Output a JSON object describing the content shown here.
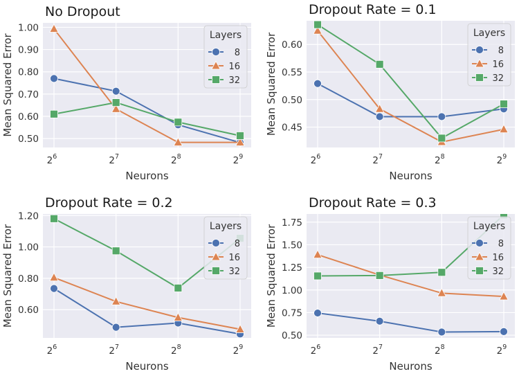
{
  "colors": {
    "8": "#4c72b0",
    "16": "#dd8452",
    "32": "#55a868",
    "background": "#eaeaf2"
  },
  "chart_data": [
    {
      "type": "line",
      "title": "No Dropout",
      "xlabel": "Neurons",
      "ylabel": "Mean Squared Error",
      "x": [
        6,
        7,
        8,
        9
      ],
      "x_tick_labels": [
        {
          "base": "2",
          "exp": "6"
        },
        {
          "base": "2",
          "exp": "7"
        },
        {
          "base": "2",
          "exp": "8"
        },
        {
          "base": "2",
          "exp": "9"
        }
      ],
      "ylim": [
        0.46,
        1.02
      ],
      "y_ticks": [
        0.5,
        0.6,
        0.7,
        0.8,
        0.9,
        1.0
      ],
      "y_tick_labels": [
        "0.50",
        "0.60",
        "0.70",
        "0.80",
        "0.90",
        "1.00"
      ],
      "legend": {
        "title": "Layers",
        "position": "top-right"
      },
      "series": [
        {
          "name": "8",
          "marker": "circle",
          "values": [
            0.77,
            0.713,
            0.562,
            0.482
          ]
        },
        {
          "name": "16",
          "marker": "triangle",
          "values": [
            0.993,
            0.633,
            0.483,
            0.483
          ]
        },
        {
          "name": "32",
          "marker": "square",
          "values": [
            0.61,
            0.662,
            0.574,
            0.513
          ]
        }
      ]
    },
    {
      "type": "line",
      "title": "Dropout Rate = 0.1",
      "xlabel": "Neurons",
      "ylabel": "Mean Squared Error",
      "x": [
        6,
        7,
        8,
        9
      ],
      "x_tick_labels": [
        {
          "base": "2",
          "exp": "6"
        },
        {
          "base": "2",
          "exp": "7"
        },
        {
          "base": "2",
          "exp": "8"
        },
        {
          "base": "2",
          "exp": "9"
        }
      ],
      "ylim": [
        0.413,
        0.643
      ],
      "y_ticks": [
        0.45,
        0.5,
        0.55,
        0.6
      ],
      "y_tick_labels": [
        "0.45",
        "0.50",
        "0.55",
        "0.60"
      ],
      "legend": {
        "title": "Layers",
        "position": "top-right"
      },
      "series": [
        {
          "name": "8",
          "marker": "circle",
          "values": [
            0.529,
            0.469,
            0.469,
            0.483
          ]
        },
        {
          "name": "16",
          "marker": "triangle",
          "values": [
            0.625,
            0.483,
            0.423,
            0.446
          ]
        },
        {
          "name": "32",
          "marker": "square",
          "values": [
            0.636,
            0.564,
            0.43,
            0.492
          ]
        }
      ]
    },
    {
      "type": "line",
      "title": "Dropout Rate = 0.2",
      "xlabel": "Neurons",
      "ylabel": "Mean Squared Error",
      "x": [
        6,
        7,
        8,
        9
      ],
      "x_tick_labels": [
        {
          "base": "2",
          "exp": "6"
        },
        {
          "base": "2",
          "exp": "7"
        },
        {
          "base": "2",
          "exp": "8"
        },
        {
          "base": "2",
          "exp": "9"
        }
      ],
      "ylim": [
        0.42,
        1.21
      ],
      "y_ticks": [
        0.6,
        0.8,
        1.0,
        1.2
      ],
      "y_tick_labels": [
        "0.60",
        "0.80",
        "1.00",
        "1.20"
      ],
      "legend": {
        "title": "Layers",
        "position": "top-right"
      },
      "series": [
        {
          "name": "8",
          "marker": "circle",
          "values": [
            0.735,
            0.488,
            0.515,
            0.445
          ]
        },
        {
          "name": "16",
          "marker": "triangle",
          "values": [
            0.805,
            0.652,
            0.55,
            0.475
          ]
        },
        {
          "name": "32",
          "marker": "square",
          "values": [
            1.18,
            0.975,
            0.738,
            1.055
          ]
        }
      ]
    },
    {
      "type": "line",
      "title": "Dropout Rate = 0.3",
      "xlabel": "Neurons",
      "ylabel": "Mean Squared Error",
      "x": [
        6,
        7,
        8,
        9
      ],
      "x_tick_labels": [
        {
          "base": "2",
          "exp": "6"
        },
        {
          "base": "2",
          "exp": "7"
        },
        {
          "base": "2",
          "exp": "8"
        },
        {
          "base": "2",
          "exp": "9"
        }
      ],
      "ylim": [
        0.47,
        1.84
      ],
      "y_ticks": [
        0.5,
        0.75,
        1.0,
        1.25,
        1.5,
        1.75
      ],
      "y_tick_labels": [
        "0.50",
        "0.75",
        "1.00",
        "1.25",
        "1.50",
        "1.75"
      ],
      "legend": {
        "title": "Layers",
        "position": "top-right"
      },
      "series": [
        {
          "name": "8",
          "marker": "circle",
          "values": [
            0.745,
            0.655,
            0.535,
            0.54
          ]
        },
        {
          "name": "16",
          "marker": "triangle",
          "values": [
            1.39,
            1.165,
            0.965,
            0.928
          ]
        },
        {
          "name": "32",
          "marker": "square",
          "values": [
            1.155,
            1.16,
            1.195,
            1.83
          ]
        }
      ]
    }
  ]
}
